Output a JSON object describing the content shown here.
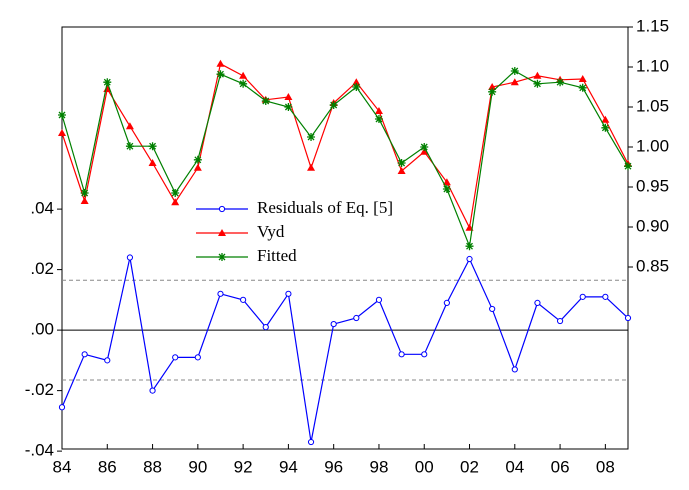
{
  "chart_data": {
    "type": "line",
    "x": [
      1984,
      1985,
      1986,
      1987,
      1988,
      1989,
      1990,
      1991,
      1992,
      1993,
      1994,
      1995,
      1996,
      1997,
      1998,
      1999,
      2000,
      2001,
      2002,
      2003,
      2004,
      2005,
      2006,
      2007,
      2008,
      2009
    ],
    "series": [
      {
        "name": "Residuals of Eq. [5]",
        "color": "#0000ff",
        "marker": "circle",
        "axis": "y",
        "values": [
          -0.0255,
          -0.008,
          -0.01,
          0.024,
          -0.02,
          -0.009,
          -0.009,
          0.012,
          0.01,
          0.001,
          0.012,
          -0.037,
          0.002,
          0.004,
          0.01,
          -0.008,
          -0.008,
          0.009,
          0.0235,
          0.007,
          -0.013,
          0.009,
          0.003,
          0.011,
          0.011,
          0.004
        ]
      },
      {
        "name": "Vyd",
        "color": "#ff0000",
        "marker": "triangle",
        "axis": "y2",
        "values": [
          1.0175,
          0.9325,
          1.0725,
          1.026,
          0.98,
          0.931,
          0.974,
          1.104,
          1.089,
          1.059,
          1.0625,
          0.974,
          1.055,
          1.081,
          1.045,
          0.97,
          0.994,
          0.956,
          0.899,
          1.075,
          1.081,
          1.089,
          1.084,
          1.085,
          1.034,
          0.979
        ]
      },
      {
        "name": "Fitted",
        "color": "#008000",
        "marker": "star",
        "axis": "y2",
        "values": [
          1.04,
          0.9425,
          1.081,
          1.001,
          1.001,
          0.9425,
          0.984,
          1.091,
          1.079,
          1.0575,
          1.05,
          1.0125,
          1.0525,
          1.075,
          1.035,
          0.98,
          1.0,
          0.9475,
          0.876,
          1.069,
          1.095,
          1.079,
          1.081,
          1.074,
          1.024,
          0.976
        ]
      }
    ],
    "bands": [
      0.0165,
      -0.0165
    ],
    "xlim": [
      1984,
      2009
    ],
    "xticks": [
      {
        "value": 1984,
        "label": "84"
      },
      {
        "value": 1986,
        "label": "86"
      },
      {
        "value": 1988,
        "label": "88"
      },
      {
        "value": 1990,
        "label": "90"
      },
      {
        "value": 1992,
        "label": "92"
      },
      {
        "value": 1994,
        "label": "94"
      },
      {
        "value": 1996,
        "label": "96"
      },
      {
        "value": 1998,
        "label": "98"
      },
      {
        "value": 2000,
        "label": "00"
      },
      {
        "value": 2002,
        "label": "02"
      },
      {
        "value": 2004,
        "label": "04"
      },
      {
        "value": 2006,
        "label": "06"
      },
      {
        "value": 2008,
        "label": "08"
      }
    ],
    "ylim": [
      -0.0393,
      0.1002
    ],
    "yticks": [
      {
        "value": -0.04,
        "label": "-.04"
      },
      {
        "value": -0.02,
        "label": "-.02"
      },
      {
        "value": 0,
        "label": ".00"
      },
      {
        "value": 0.02,
        "label": ".02"
      },
      {
        "value": 0.04,
        "label": ".04"
      }
    ],
    "y2lim": [
      0.6225,
      1.15
    ],
    "y2ticks": [
      0.85,
      {
        "value": 0.9,
        "label": "0.90"
      },
      0.95,
      {
        "value": 1.0,
        "label": "1.00"
      },
      1.05,
      {
        "value": 1.1,
        "label": "1.10"
      },
      1.15
    ]
  }
}
